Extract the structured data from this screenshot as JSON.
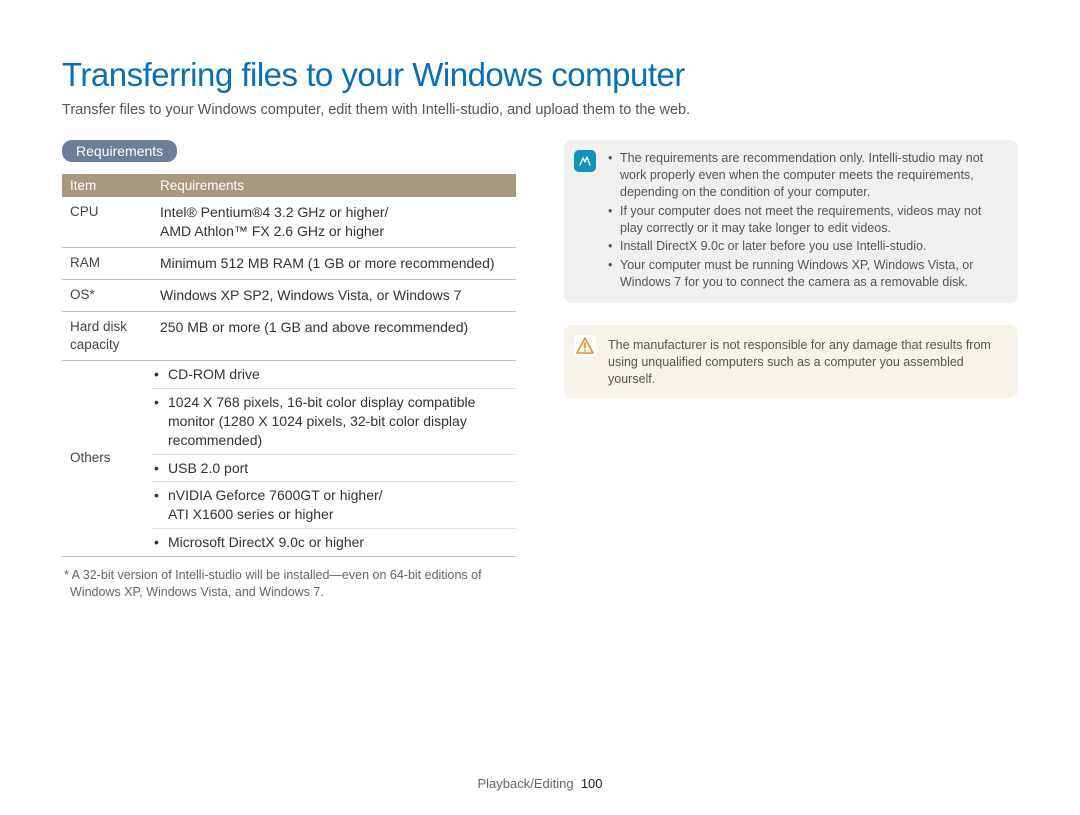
{
  "colors": {
    "title": "#0a6fb8",
    "badge_bg": "#6a7f9a",
    "table_header_bg": "#a7987e",
    "note_bg": "#eff1ee",
    "note_icon_bg": "#1292b5",
    "warn_bg": "#f7f3eb",
    "warn_icon_border": "#e98b2c"
  },
  "title": "Transferring files to your Windows computer",
  "intro": "Transfer files to your Windows computer, edit them with Intelli-studio, and upload them to the web.",
  "section_label": "Requirements",
  "table": {
    "headers": {
      "item": "Item",
      "req": "Requirements"
    },
    "rows": [
      {
        "item": "CPU",
        "req": "Intel® Pentium®4 3.2 GHz or higher/\nAMD Athlon™ FX 2.6 GHz or higher"
      },
      {
        "item": "RAM",
        "req": "Minimum 512 MB RAM (1 GB or more recommended)"
      },
      {
        "item": "OS*",
        "req": "Windows XP SP2, Windows Vista, or Windows 7"
      },
      {
        "item": "Hard disk capacity",
        "req": "250 MB or more (1 GB and above recommended)"
      }
    ],
    "others_label": "Others",
    "others": [
      "CD-ROM drive",
      "1024 X 768 pixels, 16-bit color display compatible monitor (1280 X 1024 pixels, 32-bit color display recommended)",
      "USB 2.0 port",
      "nVIDIA Geforce 7600GT or higher/\nATI X1600 series or higher",
      "Microsoft DirectX 9.0c or higher"
    ]
  },
  "footnote": "* A 32-bit version of Intelli-studio will be installed—even on 64-bit editions of Windows XP, Windows Vista, and Windows 7.",
  "info_notes": [
    "The requirements are recommendation only. Intelli-studio may not work properly even when the computer meets the requirements, depending on the condition of your computer.",
    "If your computer does not meet the requirements, videos may not play correctly or it may take longer to edit videos.",
    "Install DirectX 9.0c or later before you use Intelli-studio.",
    "Your computer must be running Windows XP, Windows Vista, or Windows 7 for you to connect the camera as a removable disk."
  ],
  "warning": "The manufacturer is not responsible for any damage that results from using unqualified computers such as a computer you assembled yourself.",
  "footer": {
    "section": "Playback/Editing",
    "page": "100"
  }
}
